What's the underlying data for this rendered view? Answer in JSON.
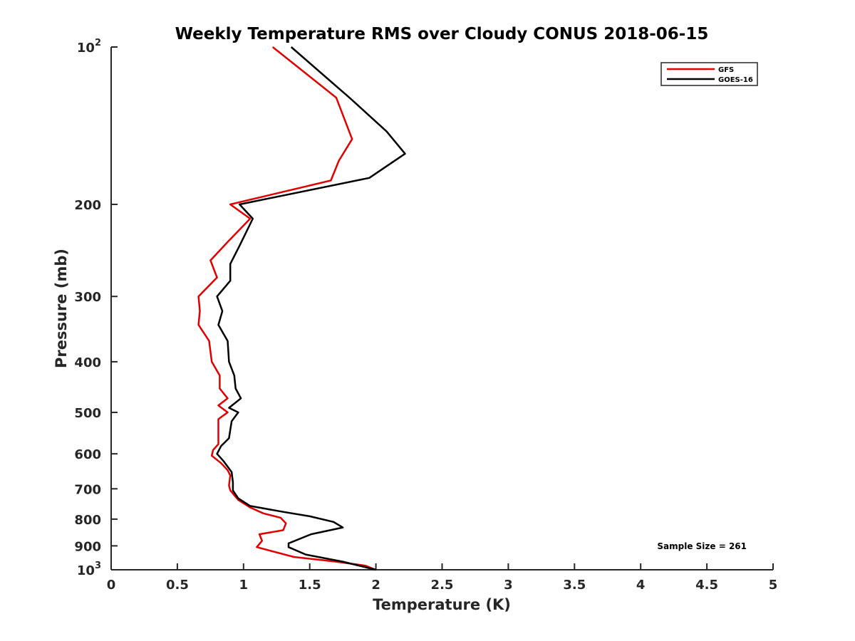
{
  "chart_data": {
    "type": "line",
    "title": "Weekly Temperature RMS over Cloudy CONUS 2018-06-15",
    "xlabel": "Temperature (K)",
    "ylabel": "Pressure (mb)",
    "xlim": [
      0,
      5
    ],
    "ylim": [
      100,
      1000
    ],
    "yscale": "log",
    "y_reversed": true,
    "xticks": [
      0,
      0.5,
      1,
      1.5,
      2,
      2.5,
      3,
      3.5,
      4,
      4.5,
      5
    ],
    "xtick_labels": [
      "0",
      "0.5",
      "1",
      "1.5",
      "2",
      "2.5",
      "3",
      "3.5",
      "4",
      "4.5",
      "5"
    ],
    "yticks": [
      100,
      200,
      300,
      400,
      500,
      600,
      700,
      800,
      900,
      1000
    ],
    "ytick_labels": [
      {
        "base": "10",
        "exp": "2"
      },
      {
        "base": "200",
        "exp": ""
      },
      {
        "base": "300",
        "exp": ""
      },
      {
        "base": "400",
        "exp": ""
      },
      {
        "base": "500",
        "exp": ""
      },
      {
        "base": "600",
        "exp": ""
      },
      {
        "base": "700",
        "exp": ""
      },
      {
        "base": "800",
        "exp": ""
      },
      {
        "base": "900",
        "exp": ""
      },
      {
        "base": "10",
        "exp": "3"
      }
    ],
    "grid": false,
    "legend_position": "top-right",
    "annotation": "Sample Size = 261",
    "series": [
      {
        "name": "GFS",
        "color": "#e00000",
        "points": [
          [
            1.22,
            100
          ],
          [
            1.7,
            125
          ],
          [
            1.82,
            150
          ],
          [
            1.72,
            165
          ],
          [
            1.66,
            180
          ],
          [
            0.9,
            200
          ],
          [
            1.05,
            213
          ],
          [
            0.88,
            236
          ],
          [
            0.75,
            256
          ],
          [
            0.8,
            276
          ],
          [
            0.66,
            300
          ],
          [
            0.67,
            320
          ],
          [
            0.66,
            340
          ],
          [
            0.74,
            365
          ],
          [
            0.76,
            400
          ],
          [
            0.82,
            425
          ],
          [
            0.82,
            450
          ],
          [
            0.88,
            470
          ],
          [
            0.81,
            485
          ],
          [
            0.88,
            500
          ],
          [
            0.81,
            515
          ],
          [
            0.81,
            550
          ],
          [
            0.81,
            575
          ],
          [
            0.77,
            590
          ],
          [
            0.76,
            605
          ],
          [
            0.83,
            625
          ],
          [
            0.88,
            645
          ],
          [
            0.9,
            660
          ],
          [
            0.89,
            690
          ],
          [
            0.9,
            705
          ],
          [
            0.96,
            735
          ],
          [
            1.05,
            760
          ],
          [
            1.15,
            780
          ],
          [
            1.28,
            795
          ],
          [
            1.32,
            815
          ],
          [
            1.3,
            840
          ],
          [
            1.12,
            855
          ],
          [
            1.14,
            880
          ],
          [
            1.1,
            905
          ],
          [
            1.38,
            945
          ],
          [
            1.7,
            965
          ],
          [
            1.92,
            982
          ],
          [
            2.0,
            1000
          ]
        ]
      },
      {
        "name": "GOES-16",
        "color": "#000000",
        "points": [
          [
            1.36,
            100
          ],
          [
            1.8,
            125
          ],
          [
            2.08,
            145
          ],
          [
            2.22,
            160
          ],
          [
            1.95,
            178
          ],
          [
            0.97,
            200
          ],
          [
            1.07,
            213
          ],
          [
            0.97,
            240
          ],
          [
            0.9,
            260
          ],
          [
            0.9,
            280
          ],
          [
            0.8,
            300
          ],
          [
            0.84,
            320
          ],
          [
            0.81,
            340
          ],
          [
            0.88,
            365
          ],
          [
            0.89,
            400
          ],
          [
            0.93,
            425
          ],
          [
            0.94,
            450
          ],
          [
            0.98,
            470
          ],
          [
            0.89,
            490
          ],
          [
            0.96,
            500
          ],
          [
            0.91,
            520
          ],
          [
            0.89,
            560
          ],
          [
            0.83,
            580
          ],
          [
            0.8,
            600
          ],
          [
            0.85,
            620
          ],
          [
            0.91,
            650
          ],
          [
            0.92,
            680
          ],
          [
            0.92,
            705
          ],
          [
            0.96,
            730
          ],
          [
            1.05,
            755
          ],
          [
            1.3,
            775
          ],
          [
            1.5,
            790
          ],
          [
            1.68,
            810
          ],
          [
            1.75,
            830
          ],
          [
            1.51,
            855
          ],
          [
            1.34,
            890
          ],
          [
            1.34,
            905
          ],
          [
            1.47,
            935
          ],
          [
            1.75,
            965
          ],
          [
            2.0,
            1000
          ]
        ]
      }
    ]
  }
}
